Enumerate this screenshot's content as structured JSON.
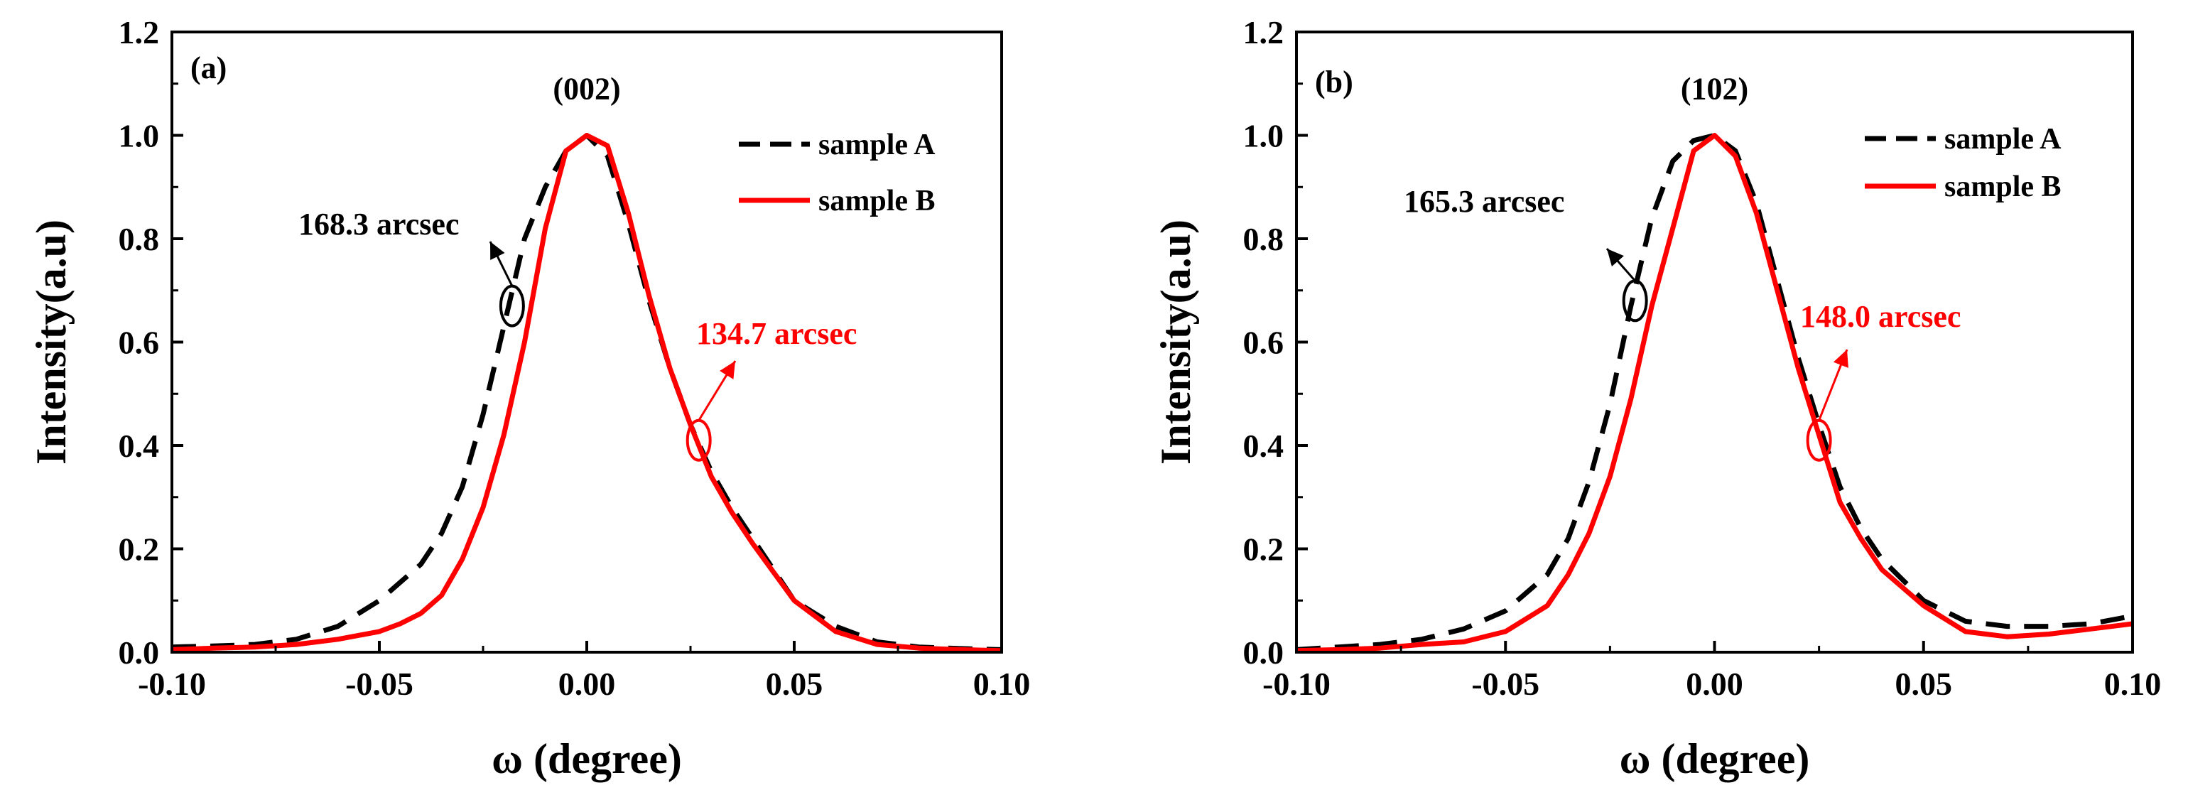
{
  "chart_data": [
    {
      "type": "line",
      "panel_label": "(a)",
      "peak_label": "(002)",
      "xlabel": "ω (degree)",
      "ylabel": "Intensity(a.u)",
      "xlim": [
        -0.1,
        0.1
      ],
      "ylim": [
        0.0,
        1.2
      ],
      "xticks": [
        "-0.10",
        "-0.05",
        "0.00",
        "0.05",
        "0.10"
      ],
      "yticks": [
        "0.0",
        "0.2",
        "0.4",
        "0.6",
        "0.8",
        "1.0",
        "1.2"
      ],
      "legend_position": "top-right",
      "series": [
        {
          "name": "sample A",
          "color": "#000000",
          "style": "dashed",
          "x": [
            -0.1,
            -0.09,
            -0.08,
            -0.07,
            -0.06,
            -0.05,
            -0.04,
            -0.035,
            -0.03,
            -0.025,
            -0.02,
            -0.015,
            -0.01,
            -0.005,
            0.0,
            0.005,
            0.01,
            0.015,
            0.02,
            0.025,
            0.03,
            0.035,
            0.04,
            0.05,
            0.06,
            0.07,
            0.08,
            0.09,
            0.1
          ],
          "y": [
            0.01,
            0.012,
            0.015,
            0.025,
            0.05,
            0.1,
            0.17,
            0.23,
            0.32,
            0.46,
            0.63,
            0.8,
            0.9,
            0.97,
            1.0,
            0.96,
            0.83,
            0.68,
            0.55,
            0.44,
            0.35,
            0.28,
            0.22,
            0.1,
            0.05,
            0.02,
            0.01,
            0.007,
            0.005
          ]
        },
        {
          "name": "sample B",
          "color": "#ff0000",
          "style": "solid",
          "x": [
            -0.1,
            -0.09,
            -0.08,
            -0.07,
            -0.06,
            -0.05,
            -0.045,
            -0.04,
            -0.035,
            -0.03,
            -0.025,
            -0.02,
            -0.015,
            -0.01,
            -0.005,
            0.0,
            0.005,
            0.01,
            0.015,
            0.02,
            0.025,
            0.03,
            0.035,
            0.04,
            0.05,
            0.06,
            0.07,
            0.08,
            0.09,
            0.1
          ],
          "y": [
            0.005,
            0.008,
            0.01,
            0.015,
            0.025,
            0.04,
            0.055,
            0.075,
            0.11,
            0.18,
            0.28,
            0.42,
            0.6,
            0.82,
            0.97,
            1.0,
            0.98,
            0.85,
            0.69,
            0.55,
            0.44,
            0.34,
            0.27,
            0.21,
            0.1,
            0.04,
            0.015,
            0.008,
            0.005,
            0.003
          ]
        }
      ],
      "annotations": [
        {
          "text": "168.3 arcsec",
          "color": "#000000",
          "ellipse_at": [
            -0.018,
            0.67
          ]
        },
        {
          "text": "134.7 arcsec",
          "color": "#ff0000",
          "ellipse_at": [
            0.027,
            0.41
          ]
        }
      ]
    },
    {
      "type": "line",
      "panel_label": "(b)",
      "peak_label": "(102)",
      "xlabel": "ω (degree)",
      "ylabel": "Intensity(a.u)",
      "xlim": [
        -0.1,
        0.1
      ],
      "ylim": [
        0.0,
        1.2
      ],
      "xticks": [
        "-0.10",
        "-0.05",
        "0.00",
        "0.05",
        "0.10"
      ],
      "yticks": [
        "0.0",
        "0.2",
        "0.4",
        "0.6",
        "0.8",
        "1.0",
        "1.2"
      ],
      "legend_position": "top-right",
      "series": [
        {
          "name": "sample A",
          "color": "#000000",
          "style": "dashed",
          "x": [
            -0.1,
            -0.09,
            -0.08,
            -0.07,
            -0.06,
            -0.05,
            -0.04,
            -0.035,
            -0.03,
            -0.025,
            -0.02,
            -0.015,
            -0.01,
            -0.005,
            0.0,
            0.005,
            0.01,
            0.015,
            0.02,
            0.025,
            0.03,
            0.035,
            0.04,
            0.05,
            0.06,
            0.07,
            0.08,
            0.09,
            0.1
          ],
          "y": [
            0.005,
            0.01,
            0.015,
            0.025,
            0.045,
            0.08,
            0.15,
            0.22,
            0.33,
            0.48,
            0.67,
            0.84,
            0.95,
            0.99,
            1.0,
            0.97,
            0.87,
            0.72,
            0.57,
            0.44,
            0.32,
            0.24,
            0.18,
            0.1,
            0.06,
            0.05,
            0.05,
            0.055,
            0.07
          ]
        },
        {
          "name": "sample B",
          "color": "#ff0000",
          "style": "solid",
          "x": [
            -0.1,
            -0.09,
            -0.08,
            -0.07,
            -0.06,
            -0.05,
            -0.04,
            -0.035,
            -0.03,
            -0.025,
            -0.02,
            -0.015,
            -0.01,
            -0.005,
            0.0,
            0.005,
            0.01,
            0.015,
            0.02,
            0.025,
            0.03,
            0.035,
            0.04,
            0.05,
            0.06,
            0.07,
            0.08,
            0.09,
            0.1
          ],
          "y": [
            0.003,
            0.005,
            0.008,
            0.015,
            0.02,
            0.04,
            0.09,
            0.15,
            0.23,
            0.34,
            0.49,
            0.67,
            0.82,
            0.97,
            1.0,
            0.96,
            0.85,
            0.7,
            0.55,
            0.42,
            0.29,
            0.22,
            0.16,
            0.09,
            0.04,
            0.03,
            0.035,
            0.045,
            0.055
          ]
        }
      ],
      "annotations": [
        {
          "text": "165.3 arcsec",
          "color": "#000000",
          "ellipse_at": [
            -0.019,
            0.68
          ]
        },
        {
          "text": "148.0 arcsec",
          "color": "#ff0000",
          "ellipse_at": [
            0.025,
            0.41
          ]
        }
      ]
    }
  ]
}
